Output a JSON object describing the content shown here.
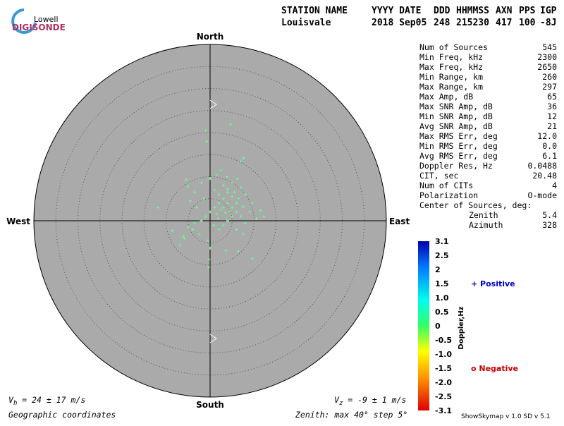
{
  "header": {
    "logo_top": "Lowell",
    "logo_bottom": "DIGISONDE",
    "labels": [
      "STATION NAME",
      "YYYY DATE",
      "DDD",
      "HHMMSS",
      "AXN",
      "PPS",
      "IGP"
    ],
    "values": [
      "Louisvale",
      "2018 Sep05",
      "248",
      "215230",
      "417",
      "100",
      "-8J"
    ]
  },
  "stats": [
    {
      "label": "Num of Sources",
      "value": "545"
    },
    {
      "label": "Min Freq, kHz",
      "value": "2300"
    },
    {
      "label": "Max Freq, kHz",
      "value": "2650"
    },
    {
      "label": "Min Range, km",
      "value": "260"
    },
    {
      "label": "Max Range, km",
      "value": "297"
    },
    {
      "label": "Max Amp, dB",
      "value": "65"
    },
    {
      "label": "Max SNR Amp, dB",
      "value": "36"
    },
    {
      "label": "Min SNR Amp, dB",
      "value": "12"
    },
    {
      "label": "Avg SNR Amp, dB",
      "value": "21"
    },
    {
      "label": "Max RMS Err, deg",
      "value": "12.0"
    },
    {
      "label": "Min RMS Err, deg",
      "value": "0.0"
    },
    {
      "label": "Avg RMS Err, deg",
      "value": "6.1"
    },
    {
      "label": "Doppler Res, Hz",
      "value": "0.0488"
    },
    {
      "label": "CIT, sec",
      "value": "20.48"
    },
    {
      "label": "Num of CITs",
      "value": "4"
    },
    {
      "label": "Polarization",
      "value": "O-mode"
    }
  ],
  "center": {
    "title": "Center of Sources, deg:",
    "zenith_label": "Zenith",
    "zenith": "5.4",
    "azimuth_label": "Azimuth",
    "azimuth": "328"
  },
  "compass": {
    "north": "North",
    "south": "South",
    "west": "West",
    "east": "East"
  },
  "colorbar": {
    "title": "Doppler,Hz",
    "ticks": [
      "3.1",
      "2.5",
      "2",
      "1.5",
      "1.0",
      "0.5",
      "0",
      "-0.5",
      "-1.0",
      "-1.5",
      "-2.0",
      "-2.5",
      "-3.1"
    ]
  },
  "legend": {
    "positive": "+ Positive",
    "negative": "o Negative"
  },
  "footer": {
    "vh_symbol": "V",
    "vh_sub": "h",
    "vh_text": " = 24 ± 17 m/s",
    "vz_symbol": "V",
    "vz_sub": "z",
    "vz_text": " = -9 ± 1 m/s",
    "coords": "Geographic coordinates",
    "zenith": "Zenith: max 40°  step 5°",
    "version": "ShowSkymap v 1.0  SD v 5.1"
  },
  "chart_data": {
    "type": "scatter",
    "color": "#66ff88",
    "x": [
      -11.8,
      -1,
      4.6,
      -0.8,
      7.6,
      7,
      -5.4,
      -5,
      -3.5,
      -2,
      0,
      1.5,
      2.5,
      3.8,
      5,
      6.2,
      7,
      8,
      9.5,
      11.4,
      12.2,
      10.5,
      9,
      7.5,
      6,
      5,
      4,
      3,
      2,
      1,
      0,
      -1,
      -2,
      -3.5,
      -5,
      -8.6,
      -6,
      -4,
      -2.5,
      -0.5,
      0,
      -0.2,
      -0.3,
      3.6,
      6.4,
      9.6,
      2,
      3,
      4,
      5,
      6,
      3,
      4,
      5,
      2,
      1,
      3,
      4,
      5.5,
      6.5,
      7,
      8,
      1.5,
      2.5,
      3.5,
      4.5,
      -1.5,
      -3,
      -4.5,
      -6.8,
      -5.8,
      0.8,
      1.8,
      6,
      7.5
    ],
    "y": [
      3,
      20.5,
      21.9,
      18,
      14.2,
      13.5,
      9.3,
      7.8,
      6.5,
      8.6,
      9.6,
      10.4,
      11.5,
      10,
      8.7,
      9.5,
      7.5,
      6,
      4,
      2.3,
      1,
      0.5,
      2,
      3.2,
      4,
      5.5,
      6.5,
      5,
      4,
      3,
      2,
      1,
      0,
      -0.5,
      -1.5,
      -2.2,
      -3.5,
      -2,
      -3,
      -4.5,
      -6.2,
      -8.8,
      -10.6,
      -6.8,
      -6.9,
      -8.6,
      -2,
      -1,
      0,
      1,
      2,
      3,
      4,
      3,
      6,
      7,
      8,
      7.2,
      6.5,
      5,
      1,
      -0.5,
      1.5,
      2.5,
      1.8,
      2.2,
      5,
      3,
      4.5,
      -5.5,
      -4,
      -1,
      0.5,
      -2,
      -3
    ]
  }
}
